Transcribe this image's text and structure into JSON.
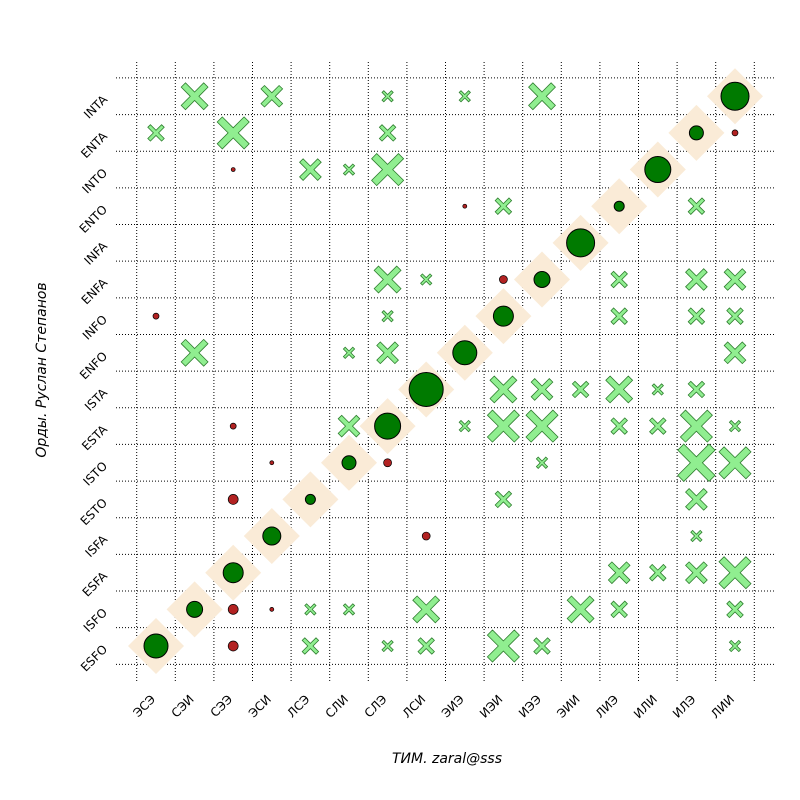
{
  "chart_data": {
    "type": "scatter",
    "xlabel": "ТИМ. zaral@sss",
    "ylabel": "Орды. Руслан Степанов",
    "x_categories": [
      "ЭСЭ",
      "СЭИ",
      "СЭЭ",
      "ЭСИ",
      "ЛСЭ",
      "СЛИ",
      "СЛЭ",
      "ЛСИ",
      "ЭИЭ",
      "ИЭИ",
      "ИЭЭ",
      "ЭИИ",
      "ЛИЭ",
      "ИЛИ",
      "ИЛЭ",
      "ЛИИ"
    ],
    "y_categories": [
      "ESFO",
      "ISFO",
      "ESFA",
      "ISFA",
      "ESTO",
      "ISTO",
      "ESTA",
      "ISTA",
      "ENFO",
      "INFO",
      "ENFA",
      "INFA",
      "ENTO",
      "INTO",
      "ENTA",
      "INTA"
    ],
    "grid": true,
    "colors": {
      "diamond": "#faebd7",
      "circle_big": "#007a00",
      "circle_small": "#b22222",
      "cross_fill": "#90ee90",
      "cross_stroke": "#2e7d2e"
    },
    "diagonal": [
      {
        "x": "ЭСЭ",
        "y": "ESFO",
        "size": 12
      },
      {
        "x": "СЭИ",
        "y": "ISFO",
        "size": 8
      },
      {
        "x": "СЭЭ",
        "y": "ESFA",
        "size": 10
      },
      {
        "x": "ЭСИ",
        "y": "ISFA",
        "size": 9
      },
      {
        "x": "ЛСЭ",
        "y": "ESTO",
        "size": 5
      },
      {
        "x": "СЛИ",
        "y": "ISTO",
        "size": 7
      },
      {
        "x": "СЛЭ",
        "y": "ESTA",
        "size": 13
      },
      {
        "x": "ЛСИ",
        "y": "ISTA",
        "size": 17
      },
      {
        "x": "ЭИЭ",
        "y": "ENFO",
        "size": 12
      },
      {
        "x": "ИЭИ",
        "y": "INFO",
        "size": 10
      },
      {
        "x": "ИЭЭ",
        "y": "ENFA",
        "size": 8
      },
      {
        "x": "ЭИИ",
        "y": "INFA",
        "size": 14
      },
      {
        "x": "ЛИЭ",
        "y": "ENTO",
        "size": 5
      },
      {
        "x": "ИЛИ",
        "y": "INTO",
        "size": 13
      },
      {
        "x": "ИЛЭ",
        "y": "ENTA",
        "size": 7
      },
      {
        "x": "ЛИИ",
        "y": "INTA",
        "size": 14
      }
    ],
    "small_circles": [
      {
        "x": "СЭЭ",
        "y": "INTO",
        "size": 2
      },
      {
        "x": "ЛИИ",
        "y": "ENTA",
        "size": 3
      },
      {
        "x": "ЭИЭ",
        "y": "ENTO",
        "size": 2
      },
      {
        "x": "ИЭИ",
        "y": "ENFA",
        "size": 4
      },
      {
        "x": "ЭСЭ",
        "y": "INFO",
        "size": 3
      },
      {
        "x": "СЭЭ",
        "y": "ESTA",
        "size": 3
      },
      {
        "x": "ЭСИ",
        "y": "ISTO",
        "size": 2
      },
      {
        "x": "СЛЭ",
        "y": "ISTO",
        "size": 4
      },
      {
        "x": "СЭЭ",
        "y": "ESTO",
        "size": 5
      },
      {
        "x": "ЛСИ",
        "y": "ISFA",
        "size": 4
      },
      {
        "x": "СЭЭ",
        "y": "ISFO",
        "size": 5
      },
      {
        "x": "ЭСИ",
        "y": "ISFO",
        "size": 2
      },
      {
        "x": "СЭЭ",
        "y": "ESFO",
        "size": 5
      }
    ],
    "crosses": [
      {
        "x": "СЭИ",
        "y": "INTA",
        "size": 4
      },
      {
        "x": "ЭСИ",
        "y": "INTA",
        "size": 3
      },
      {
        "x": "СЛЭ",
        "y": "INTA",
        "size": 1
      },
      {
        "x": "ЭИЭ",
        "y": "INTA",
        "size": 1
      },
      {
        "x": "ИЭЭ",
        "y": "INTA",
        "size": 4
      },
      {
        "x": "ЭСЭ",
        "y": "ENTA",
        "size": 2
      },
      {
        "x": "СЭЭ",
        "y": "ENTA",
        "size": 5
      },
      {
        "x": "СЛЭ",
        "y": "ENTA",
        "size": 2
      },
      {
        "x": "ЛСЭ",
        "y": "INTO",
        "size": 3
      },
      {
        "x": "СЛИ",
        "y": "INTO",
        "size": 1
      },
      {
        "x": "СЛЭ",
        "y": "INTO",
        "size": 5
      },
      {
        "x": "ИЭИ",
        "y": "ENTO",
        "size": 2
      },
      {
        "x": "ИЛЭ",
        "y": "ENTO",
        "size": 2
      },
      {
        "x": "СЛЭ",
        "y": "ENFA",
        "size": 4
      },
      {
        "x": "ЛСИ",
        "y": "ENFA",
        "size": 1
      },
      {
        "x": "ЛИЭ",
        "y": "ENFA",
        "size": 2
      },
      {
        "x": "ИЛЭ",
        "y": "ENFA",
        "size": 3
      },
      {
        "x": "ЛИИ",
        "y": "ENFA",
        "size": 3
      },
      {
        "x": "СЛЭ",
        "y": "INFO",
        "size": 1
      },
      {
        "x": "ЛИЭ",
        "y": "INFO",
        "size": 2
      },
      {
        "x": "ИЛЭ",
        "y": "INFO",
        "size": 2
      },
      {
        "x": "ЛИИ",
        "y": "INFO",
        "size": 2
      },
      {
        "x": "СЭИ",
        "y": "ENFO",
        "size": 4
      },
      {
        "x": "СЛИ",
        "y": "ENFO",
        "size": 1
      },
      {
        "x": "СЛЭ",
        "y": "ENFO",
        "size": 3
      },
      {
        "x": "ЛИИ",
        "y": "ENFO",
        "size": 3
      },
      {
        "x": "ИЭИ",
        "y": "ISTA",
        "size": 4
      },
      {
        "x": "ИЭЭ",
        "y": "ISTA",
        "size": 3
      },
      {
        "x": "ЭИИ",
        "y": "ISTA",
        "size": 2
      },
      {
        "x": "ЛИЭ",
        "y": "ISTA",
        "size": 4
      },
      {
        "x": "ИЛИ",
        "y": "ISTA",
        "size": 1
      },
      {
        "x": "ИЛЭ",
        "y": "ISTA",
        "size": 2
      },
      {
        "x": "СЛИ",
        "y": "ESTA",
        "size": 3
      },
      {
        "x": "ЭИЭ",
        "y": "ESTA",
        "size": 1
      },
      {
        "x": "ИЭИ",
        "y": "ESTA",
        "size": 5
      },
      {
        "x": "ИЭЭ",
        "y": "ESTA",
        "size": 5
      },
      {
        "x": "ЛИЭ",
        "y": "ESTA",
        "size": 2
      },
      {
        "x": "ИЛИ",
        "y": "ESTA",
        "size": 2
      },
      {
        "x": "ИЛЭ",
        "y": "ESTA",
        "size": 5
      },
      {
        "x": "ЛИИ",
        "y": "ESTA",
        "size": 1
      },
      {
        "x": "ИЭЭ",
        "y": "ISTO",
        "size": 1
      },
      {
        "x": "ИЛЭ",
        "y": "ISTO",
        "size": 6
      },
      {
        "x": "ЛИИ",
        "y": "ISTO",
        "size": 5
      },
      {
        "x": "ИЭИ",
        "y": "ESTO",
        "size": 2
      },
      {
        "x": "ИЛЭ",
        "y": "ESTO",
        "size": 3
      },
      {
        "x": "ИЛЭ",
        "y": "ISFA",
        "size": 1
      },
      {
        "x": "ЛИЭ",
        "y": "ESFA",
        "size": 3
      },
      {
        "x": "ИЛИ",
        "y": "ESFA",
        "size": 2
      },
      {
        "x": "ИЛЭ",
        "y": "ESFA",
        "size": 3
      },
      {
        "x": "ЛИИ",
        "y": "ESFA",
        "size": 5
      },
      {
        "x": "ЛСЭ",
        "y": "ISFO",
        "size": 1
      },
      {
        "x": "СЛИ",
        "y": "ISFO",
        "size": 1
      },
      {
        "x": "ЛСИ",
        "y": "ISFO",
        "size": 4
      },
      {
        "x": "ЭИИ",
        "y": "ISFO",
        "size": 4
      },
      {
        "x": "ЛИЭ",
        "y": "ISFO",
        "size": 2
      },
      {
        "x": "ЛИИ",
        "y": "ISFO",
        "size": 2
      },
      {
        "x": "ЛСЭ",
        "y": "ESFO",
        "size": 2
      },
      {
        "x": "СЛЭ",
        "y": "ESFO",
        "size": 1
      },
      {
        "x": "ЛСИ",
        "y": "ESFO",
        "size": 2
      },
      {
        "x": "ИЭИ",
        "y": "ESFO",
        "size": 5
      },
      {
        "x": "ИЭЭ",
        "y": "ESFO",
        "size": 2
      },
      {
        "x": "ЛИИ",
        "y": "ESFO",
        "size": 1
      }
    ]
  }
}
